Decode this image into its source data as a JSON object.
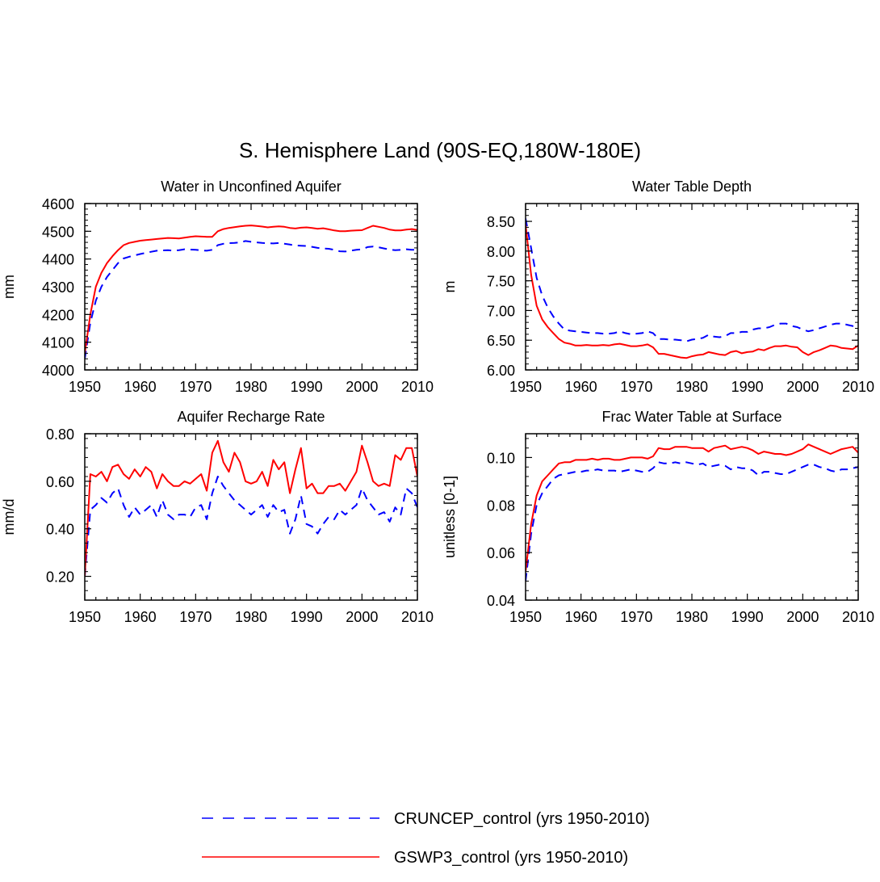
{
  "figure": {
    "title": "S. Hemisphere Land (90S-EQ,180W-180E)"
  },
  "legend": {
    "entries": [
      {
        "label": "CRUNCEP_control (yrs 1950-2010)",
        "color": "#0000ff",
        "style": "dashed"
      },
      {
        "label": "GSWP3_control (yrs 1950-2010)",
        "color": "#ff0000",
        "style": "solid"
      }
    ]
  },
  "chart_data": [
    {
      "type": "line",
      "title": "Water in Unconfined Aquifer",
      "ylabel": "mm",
      "xlim": [
        1950,
        2010
      ],
      "ylim": [
        4000,
        4600
      ],
      "xticks": [
        1950,
        1960,
        1970,
        1980,
        1990,
        2000,
        2010
      ],
      "yticks": [
        4000,
        4100,
        4200,
        4300,
        4400,
        4500,
        4600
      ],
      "ytick_labels": [
        "4000",
        "4100",
        "4200",
        "4300",
        "4400",
        "4500",
        "4600"
      ],
      "x": [
        1950,
        1951,
        1952,
        1953,
        1954,
        1955,
        1956,
        1957,
        1958,
        1959,
        1960,
        1961,
        1962,
        1963,
        1964,
        1965,
        1966,
        1967,
        1968,
        1969,
        1970,
        1971,
        1972,
        1973,
        1974,
        1975,
        1976,
        1977,
        1978,
        1979,
        1980,
        1981,
        1982,
        1983,
        1984,
        1985,
        1986,
        1987,
        1988,
        1989,
        1990,
        1991,
        1992,
        1993,
        1994,
        1995,
        1996,
        1997,
        1998,
        1999,
        2000,
        2001,
        2002,
        2003,
        2004,
        2005,
        2006,
        2007,
        2008,
        2009,
        2010
      ],
      "series": [
        {
          "name": "CRUNCEP_control (yrs 1950-2010)",
          "color": "#0000ff",
          "style": "dashed",
          "values": [
            4040,
            4170,
            4250,
            4300,
            4335,
            4360,
            4385,
            4402,
            4408,
            4413,
            4418,
            4422,
            4426,
            4430,
            4431,
            4432,
            4430,
            4432,
            4435,
            4434,
            4433,
            4431,
            4430,
            4433,
            4450,
            4455,
            4457,
            4458,
            4460,
            4465,
            4462,
            4460,
            4458,
            4457,
            4456,
            4458,
            4455,
            4452,
            4449,
            4448,
            4447,
            4444,
            4440,
            4438,
            4437,
            4433,
            4428,
            4427,
            4430,
            4433,
            4435,
            4443,
            4445,
            4442,
            4438,
            4434,
            4432,
            4433,
            4435,
            4433,
            4433
          ]
        },
        {
          "name": "GSWP3_control (yrs 1950-2010)",
          "color": "#ff0000",
          "style": "solid",
          "values": [
            4060,
            4200,
            4300,
            4350,
            4385,
            4410,
            4432,
            4450,
            4458,
            4462,
            4466,
            4468,
            4470,
            4472,
            4474,
            4476,
            4475,
            4474,
            4477,
            4480,
            4482,
            4481,
            4480,
            4480,
            4500,
            4508,
            4512,
            4515,
            4518,
            4520,
            4521,
            4519,
            4517,
            4514,
            4516,
            4518,
            4516,
            4512,
            4510,
            4513,
            4514,
            4512,
            4509,
            4511,
            4507,
            4503,
            4500,
            4500,
            4502,
            4503,
            4504,
            4512,
            4520,
            4516,
            4512,
            4506,
            4503,
            4503,
            4506,
            4508,
            4505
          ]
        }
      ]
    },
    {
      "type": "line",
      "title": "Water Table Depth",
      "ylabel": "m",
      "xlim": [
        1950,
        2010
      ],
      "ylim": [
        6.0,
        8.8
      ],
      "xticks": [
        1950,
        1960,
        1970,
        1980,
        1990,
        2000,
        2010
      ],
      "yticks": [
        6.0,
        6.5,
        7.0,
        7.5,
        8.0,
        8.5
      ],
      "ytick_labels": [
        "6.00",
        "6.50",
        "7.00",
        "7.50",
        "8.00",
        "8.50"
      ],
      "x": [
        1950,
        1951,
        1952,
        1953,
        1954,
        1955,
        1956,
        1957,
        1958,
        1959,
        1960,
        1961,
        1962,
        1963,
        1964,
        1965,
        1966,
        1967,
        1968,
        1969,
        1970,
        1971,
        1972,
        1973,
        1974,
        1975,
        1976,
        1977,
        1978,
        1979,
        1980,
        1981,
        1982,
        1983,
        1984,
        1985,
        1986,
        1987,
        1988,
        1989,
        1990,
        1991,
        1992,
        1993,
        1994,
        1995,
        1996,
        1997,
        1998,
        1999,
        2000,
        2001,
        2002,
        2003,
        2004,
        2005,
        2006,
        2007,
        2008,
        2009,
        2010
      ],
      "series": [
        {
          "name": "CRUNCEP_control (yrs 1950-2010)",
          "color": "#0000ff",
          "style": "dashed",
          "values": [
            8.55,
            8.05,
            7.55,
            7.25,
            7.05,
            6.9,
            6.78,
            6.68,
            6.66,
            6.65,
            6.64,
            6.63,
            6.62,
            6.62,
            6.61,
            6.61,
            6.62,
            6.65,
            6.62,
            6.6,
            6.61,
            6.62,
            6.65,
            6.62,
            6.52,
            6.52,
            6.51,
            6.51,
            6.5,
            6.48,
            6.51,
            6.52,
            6.54,
            6.59,
            6.56,
            6.55,
            6.57,
            6.62,
            6.62,
            6.64,
            6.64,
            6.68,
            6.7,
            6.7,
            6.72,
            6.76,
            6.78,
            6.78,
            6.74,
            6.72,
            6.68,
            6.65,
            6.67,
            6.7,
            6.73,
            6.76,
            6.78,
            6.78,
            6.76,
            6.74,
            6.73
          ]
        },
        {
          "name": "GSWP3_control (yrs 1950-2010)",
          "color": "#ff0000",
          "style": "solid",
          "values": [
            8.45,
            7.6,
            7.08,
            6.85,
            6.72,
            6.62,
            6.52,
            6.46,
            6.44,
            6.41,
            6.41,
            6.42,
            6.41,
            6.41,
            6.42,
            6.41,
            6.43,
            6.44,
            6.42,
            6.4,
            6.4,
            6.41,
            6.43,
            6.38,
            6.27,
            6.27,
            6.25,
            6.23,
            6.21,
            6.2,
            6.23,
            6.25,
            6.26,
            6.3,
            6.28,
            6.26,
            6.25,
            6.3,
            6.32,
            6.28,
            6.3,
            6.31,
            6.35,
            6.33,
            6.37,
            6.4,
            6.4,
            6.41,
            6.39,
            6.38,
            6.3,
            6.25,
            6.3,
            6.33,
            6.37,
            6.41,
            6.4,
            6.37,
            6.36,
            6.35,
            6.41
          ]
        }
      ]
    },
    {
      "type": "line",
      "title": "Aquifer Recharge Rate",
      "ylabel": "mm/d",
      "xlim": [
        1950,
        2010
      ],
      "ylim": [
        0.1,
        0.8
      ],
      "xticks": [
        1950,
        1960,
        1970,
        1980,
        1990,
        2000,
        2010
      ],
      "yticks": [
        0.2,
        0.4,
        0.6,
        0.8
      ],
      "ytick_labels": [
        "0.20",
        "0.40",
        "0.60",
        "0.80"
      ],
      "x": [
        1950,
        1951,
        1952,
        1953,
        1954,
        1955,
        1956,
        1957,
        1958,
        1959,
        1960,
        1961,
        1962,
        1963,
        1964,
        1965,
        1966,
        1967,
        1968,
        1969,
        1970,
        1971,
        1972,
        1973,
        1974,
        1975,
        1976,
        1977,
        1978,
        1979,
        1980,
        1981,
        1982,
        1983,
        1984,
        1985,
        1986,
        1987,
        1988,
        1989,
        1990,
        1991,
        1992,
        1993,
        1994,
        1995,
        1996,
        1997,
        1998,
        1999,
        2000,
        2001,
        2002,
        2003,
        2004,
        2005,
        2006,
        2007,
        2008,
        2009,
        2010
      ],
      "series": [
        {
          "name": "CRUNCEP_control (yrs 1950-2010)",
          "color": "#0000ff",
          "style": "dashed",
          "values": [
            0.2,
            0.48,
            0.5,
            0.53,
            0.51,
            0.55,
            0.57,
            0.5,
            0.45,
            0.49,
            0.46,
            0.48,
            0.5,
            0.45,
            0.52,
            0.46,
            0.44,
            0.46,
            0.46,
            0.45,
            0.49,
            0.5,
            0.44,
            0.55,
            0.62,
            0.58,
            0.55,
            0.52,
            0.5,
            0.48,
            0.46,
            0.48,
            0.5,
            0.45,
            0.5,
            0.47,
            0.48,
            0.38,
            0.44,
            0.54,
            0.42,
            0.41,
            0.38,
            0.42,
            0.45,
            0.44,
            0.48,
            0.46,
            0.48,
            0.5,
            0.57,
            0.52,
            0.49,
            0.46,
            0.47,
            0.43,
            0.49,
            0.46,
            0.57,
            0.55,
            0.49
          ]
        },
        {
          "name": "GSWP3_control (yrs 1950-2010)",
          "color": "#ff0000",
          "style": "solid",
          "values": [
            0.2,
            0.63,
            0.62,
            0.64,
            0.6,
            0.66,
            0.67,
            0.63,
            0.61,
            0.65,
            0.62,
            0.66,
            0.64,
            0.57,
            0.63,
            0.6,
            0.58,
            0.58,
            0.6,
            0.59,
            0.61,
            0.63,
            0.56,
            0.72,
            0.77,
            0.68,
            0.64,
            0.72,
            0.68,
            0.6,
            0.59,
            0.6,
            0.64,
            0.58,
            0.69,
            0.65,
            0.68,
            0.55,
            0.65,
            0.74,
            0.57,
            0.59,
            0.55,
            0.55,
            0.58,
            0.58,
            0.59,
            0.56,
            0.6,
            0.64,
            0.75,
            0.68,
            0.6,
            0.58,
            0.59,
            0.58,
            0.71,
            0.69,
            0.74,
            0.74,
            0.62
          ]
        }
      ]
    },
    {
      "type": "line",
      "title": "Frac Water Table at Surface",
      "ylabel": "unitless [0-1]",
      "xlim": [
        1950,
        2010
      ],
      "ylim": [
        0.04,
        0.11
      ],
      "xticks": [
        1950,
        1960,
        1970,
        1980,
        1990,
        2000,
        2010
      ],
      "yticks": [
        0.04,
        0.06,
        0.08,
        0.1
      ],
      "ytick_labels": [
        "0.04",
        "0.06",
        "0.08",
        "0.10"
      ],
      "x": [
        1950,
        1951,
        1952,
        1953,
        1954,
        1955,
        1956,
        1957,
        1958,
        1959,
        1960,
        1961,
        1962,
        1963,
        1964,
        1965,
        1966,
        1967,
        1968,
        1969,
        1970,
        1971,
        1972,
        1973,
        1974,
        1975,
        1976,
        1977,
        1978,
        1979,
        1980,
        1981,
        1982,
        1983,
        1984,
        1985,
        1986,
        1987,
        1988,
        1989,
        1990,
        1991,
        1992,
        1993,
        1994,
        1995,
        1996,
        1997,
        1998,
        1999,
        2000,
        2001,
        2002,
        2003,
        2004,
        2005,
        2006,
        2007,
        2008,
        2009,
        2010
      ],
      "series": [
        {
          "name": "CRUNCEP_control (yrs 1950-2010)",
          "color": "#0000ff",
          "style": "dashed",
          "values": [
            0.048,
            0.068,
            0.08,
            0.085,
            0.088,
            0.091,
            0.0925,
            0.093,
            0.0935,
            0.094,
            0.094,
            0.0945,
            0.0945,
            0.095,
            0.0945,
            0.0945,
            0.0945,
            0.094,
            0.0945,
            0.095,
            0.0945,
            0.094,
            0.094,
            0.0955,
            0.098,
            0.0975,
            0.0975,
            0.098,
            0.0975,
            0.098,
            0.0975,
            0.097,
            0.0975,
            0.096,
            0.0965,
            0.097,
            0.0965,
            0.095,
            0.096,
            0.0955,
            0.0955,
            0.0945,
            0.0925,
            0.094,
            0.094,
            0.0935,
            0.093,
            0.093,
            0.094,
            0.095,
            0.096,
            0.097,
            0.097,
            0.096,
            0.0955,
            0.0945,
            0.094,
            0.095,
            0.095,
            0.0955,
            0.096
          ]
        },
        {
          "name": "GSWP3_control (yrs 1950-2010)",
          "color": "#ff0000",
          "style": "solid",
          "values": [
            0.052,
            0.072,
            0.084,
            0.09,
            0.0925,
            0.095,
            0.0975,
            0.098,
            0.098,
            0.099,
            0.099,
            0.099,
            0.0995,
            0.099,
            0.0995,
            0.0995,
            0.099,
            0.099,
            0.0995,
            0.1,
            0.1,
            0.1,
            0.0995,
            0.1005,
            0.104,
            0.1035,
            0.1035,
            0.1045,
            0.1045,
            0.1045,
            0.104,
            0.104,
            0.104,
            0.1025,
            0.104,
            0.1045,
            0.105,
            0.1035,
            0.104,
            0.1045,
            0.104,
            0.103,
            0.1015,
            0.1025,
            0.102,
            0.1015,
            0.1015,
            0.101,
            0.1015,
            0.1025,
            0.1035,
            0.1055,
            0.1045,
            0.1035,
            0.1025,
            0.1015,
            0.1025,
            0.1035,
            0.104,
            0.1045,
            0.102
          ]
        }
      ]
    }
  ]
}
